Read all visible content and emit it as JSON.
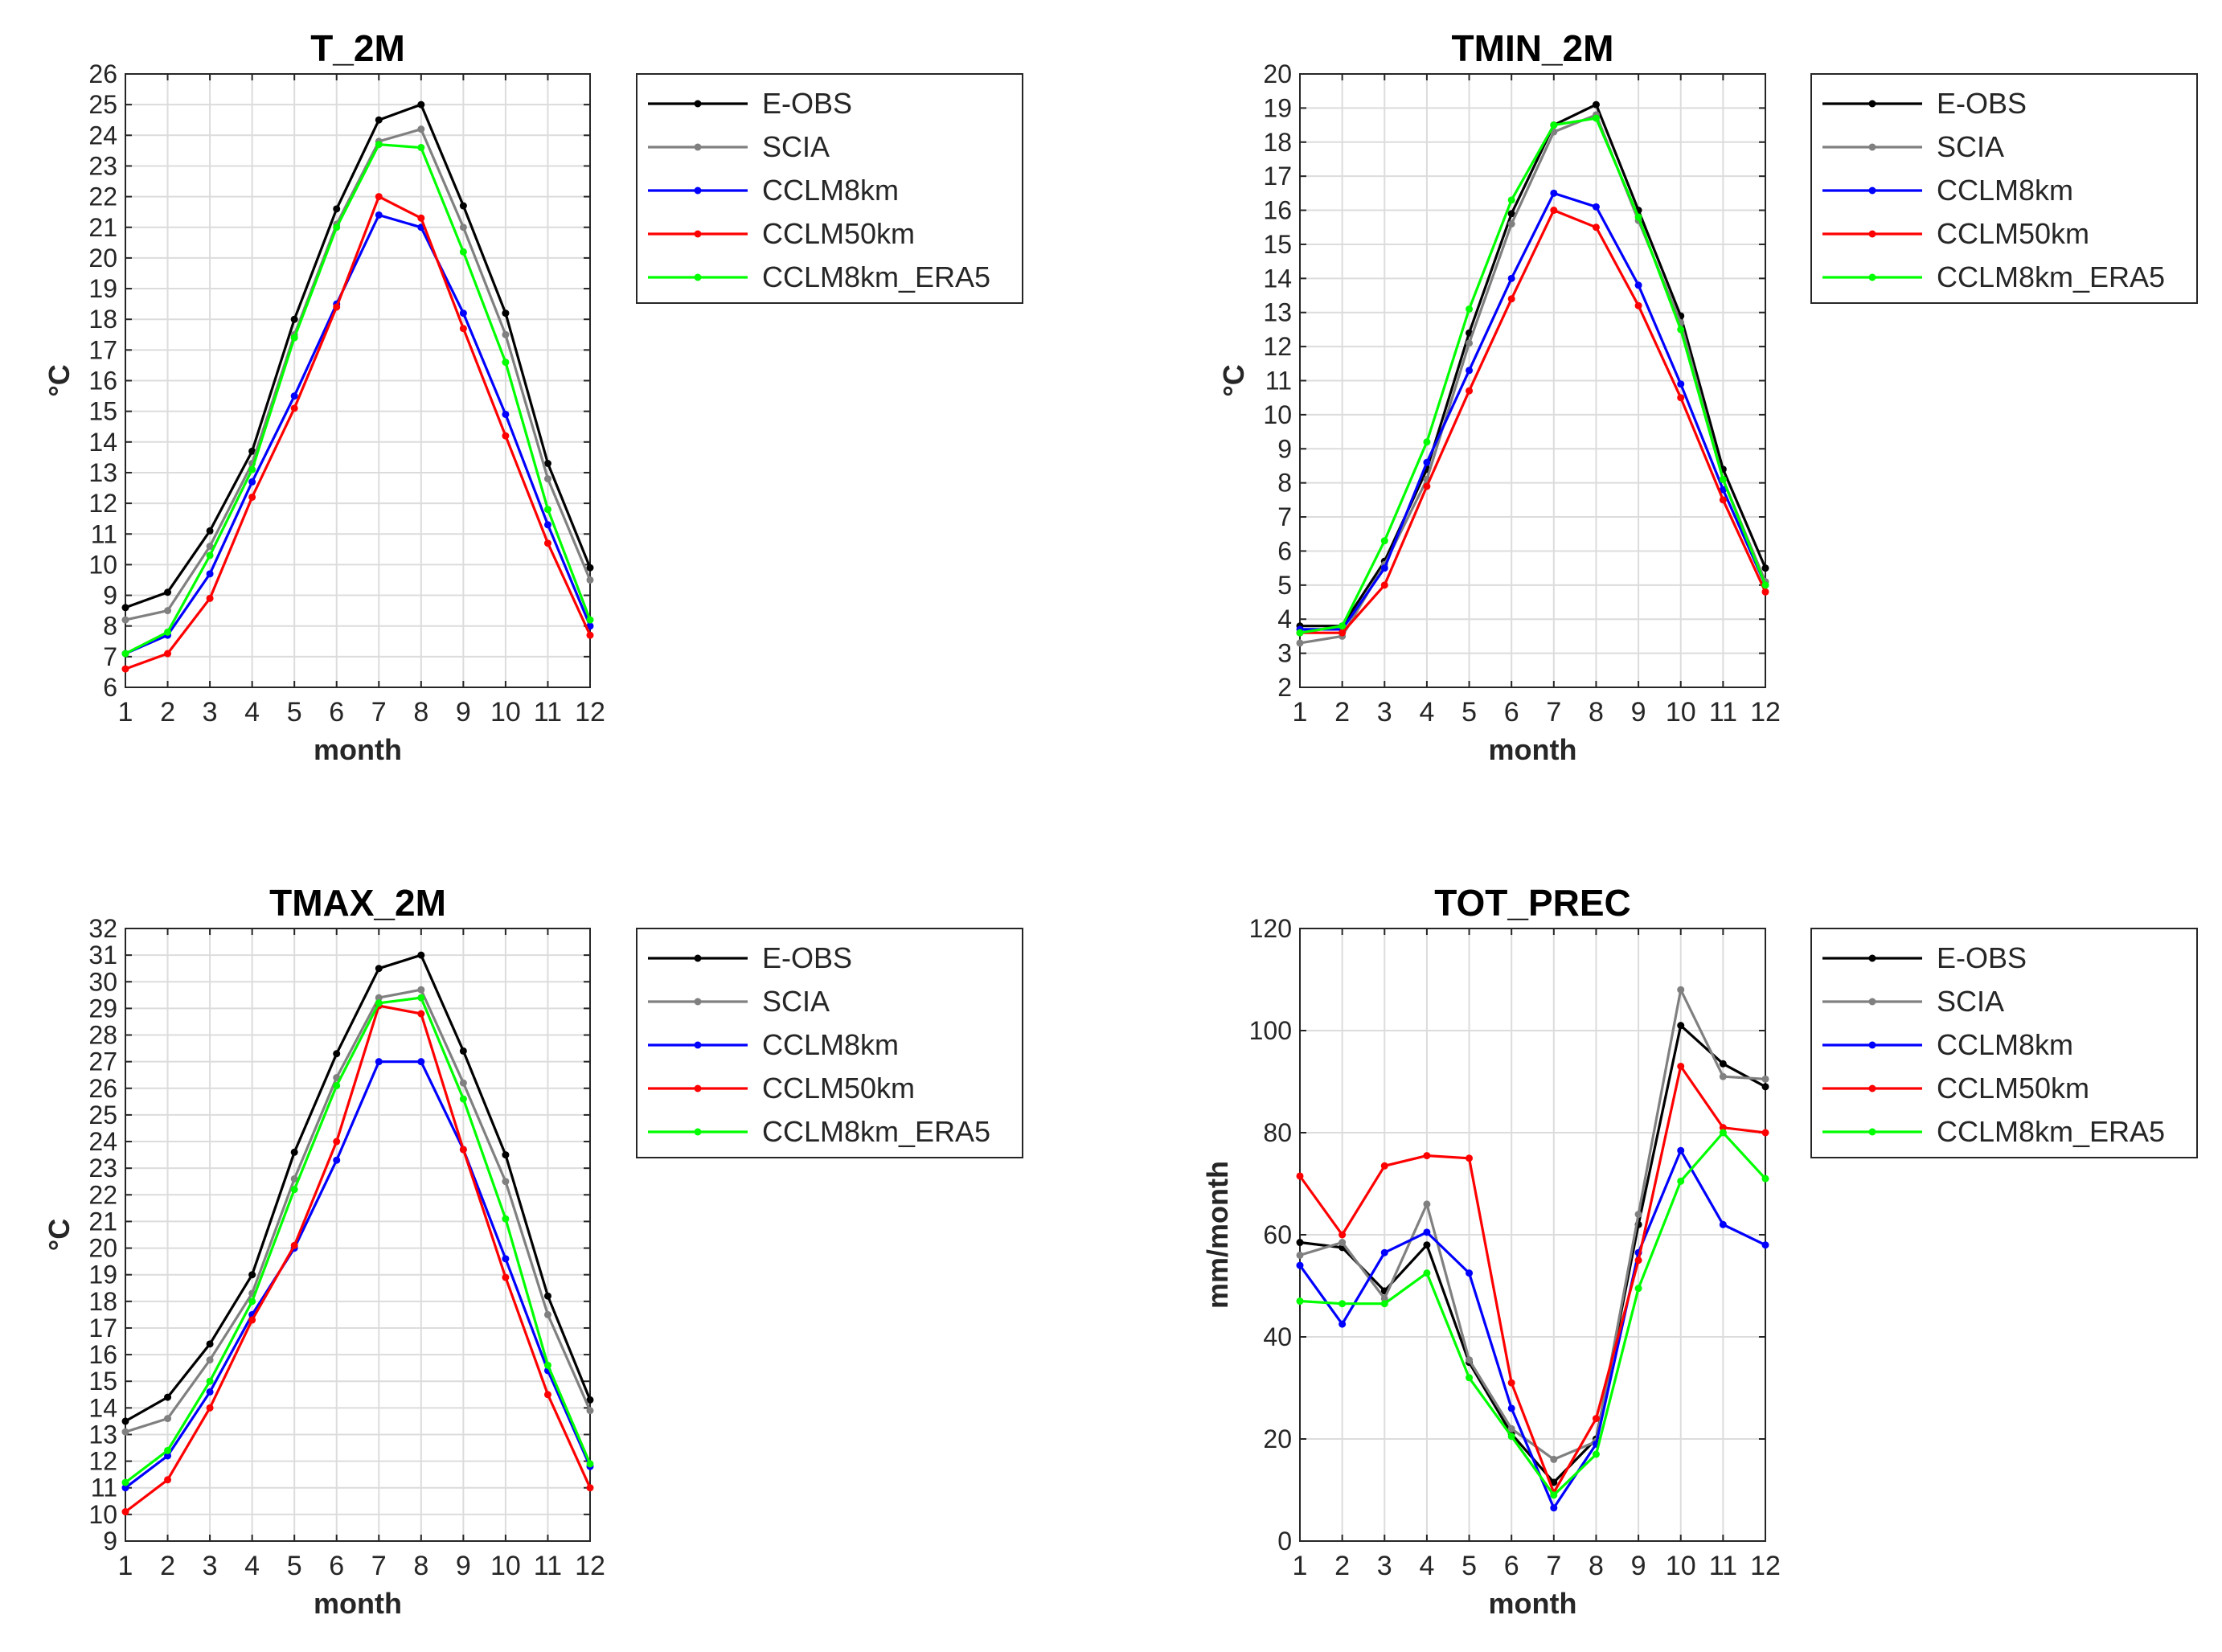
{
  "figure": {
    "name": "climatology-comparison"
  },
  "series_styles": [
    {
      "name": "E-OBS",
      "color": "#000000"
    },
    {
      "name": "SCIA",
      "color": "#808080"
    },
    {
      "name": "CCLM8km",
      "color": "#0000ff"
    },
    {
      "name": "CCLM50km",
      "color": "#ff0000"
    },
    {
      "name": "CCLM8km_ERA5",
      "color": "#00ff00"
    }
  ],
  "chart_data": [
    {
      "id": "t2m",
      "type": "line",
      "title": "T_2M",
      "xlabel": "month",
      "ylabel": "°C",
      "xlim": [
        1,
        12
      ],
      "ylim": [
        6,
        26
      ],
      "yticks": [
        6,
        7,
        8,
        9,
        10,
        11,
        12,
        13,
        14,
        15,
        16,
        17,
        18,
        19,
        20,
        21,
        22,
        23,
        24,
        25,
        26
      ],
      "x": [
        1,
        2,
        3,
        4,
        5,
        6,
        7,
        8,
        9,
        10,
        11,
        12
      ],
      "grid": true,
      "legend": "right",
      "series": [
        {
          "name": "E-OBS",
          "values": [
            8.6,
            9.1,
            11.1,
            13.7,
            18.0,
            21.6,
            24.5,
            25.0,
            21.7,
            18.2,
            13.3,
            9.9
          ]
        },
        {
          "name": "SCIA",
          "values": [
            8.2,
            8.5,
            10.6,
            13.3,
            17.5,
            21.1,
            23.8,
            24.2,
            21.0,
            17.5,
            12.8,
            9.5
          ]
        },
        {
          "name": "CCLM8km",
          "values": [
            7.1,
            7.7,
            9.7,
            12.7,
            15.5,
            18.5,
            21.4,
            21.0,
            18.2,
            14.9,
            11.3,
            8.0
          ]
        },
        {
          "name": "CCLM50km",
          "values": [
            6.6,
            7.1,
            8.9,
            12.2,
            15.1,
            18.4,
            22.0,
            21.3,
            17.7,
            14.2,
            10.7,
            7.7
          ]
        },
        {
          "name": "CCLM8km_ERA5",
          "values": [
            7.1,
            7.8,
            10.3,
            13.1,
            17.4,
            21.0,
            23.7,
            23.6,
            20.2,
            16.6,
            11.8,
            8.2
          ]
        }
      ]
    },
    {
      "id": "tmin2m",
      "type": "line",
      "title": "TMIN_2M",
      "xlabel": "month",
      "ylabel": "°C",
      "xlim": [
        1,
        12
      ],
      "ylim": [
        2,
        20
      ],
      "yticks": [
        2,
        3,
        4,
        5,
        6,
        7,
        8,
        9,
        10,
        11,
        12,
        13,
        14,
        15,
        16,
        17,
        18,
        19,
        20
      ],
      "x": [
        1,
        2,
        3,
        4,
        5,
        6,
        7,
        8,
        9,
        10,
        11,
        12
      ],
      "grid": true,
      "legend": "right",
      "series": [
        {
          "name": "E-OBS",
          "values": [
            3.8,
            3.8,
            5.7,
            8.4,
            12.4,
            15.9,
            18.5,
            19.1,
            16.0,
            12.9,
            8.4,
            5.5
          ]
        },
        {
          "name": "SCIA",
          "values": [
            3.3,
            3.5,
            5.6,
            8.1,
            12.1,
            15.6,
            18.3,
            18.8,
            15.7,
            12.7,
            8.1,
            5.1
          ]
        },
        {
          "name": "CCLM8km",
          "values": [
            3.7,
            3.7,
            5.5,
            8.6,
            11.3,
            14.0,
            16.5,
            16.1,
            13.8,
            10.9,
            7.8,
            5.0
          ]
        },
        {
          "name": "CCLM50km",
          "values": [
            3.6,
            3.6,
            5.0,
            7.9,
            10.7,
            13.4,
            16.0,
            15.5,
            13.2,
            10.5,
            7.5,
            4.8
          ]
        },
        {
          "name": "CCLM8km_ERA5",
          "values": [
            3.6,
            3.8,
            6.3,
            9.2,
            13.1,
            16.3,
            18.5,
            18.7,
            15.8,
            12.5,
            8.1,
            5.0
          ]
        }
      ]
    },
    {
      "id": "tmax2m",
      "type": "line",
      "title": "TMAX_2M",
      "xlabel": "month",
      "ylabel": "°C",
      "xlim": [
        1,
        12
      ],
      "ylim": [
        9,
        32
      ],
      "yticks": [
        9,
        10,
        11,
        12,
        13,
        14,
        15,
        16,
        17,
        18,
        19,
        20,
        21,
        22,
        23,
        24,
        25,
        26,
        27,
        28,
        29,
        30,
        31,
        32
      ],
      "x": [
        1,
        2,
        3,
        4,
        5,
        6,
        7,
        8,
        9,
        10,
        11,
        12
      ],
      "grid": true,
      "legend": "right",
      "series": [
        {
          "name": "E-OBS",
          "values": [
            13.5,
            14.4,
            16.4,
            19.0,
            23.6,
            27.3,
            30.5,
            31.0,
            27.4,
            23.5,
            18.2,
            14.3
          ]
        },
        {
          "name": "SCIA",
          "values": [
            13.1,
            13.6,
            15.8,
            18.3,
            22.6,
            26.4,
            29.4,
            29.7,
            26.2,
            22.5,
            17.5,
            13.9
          ]
        },
        {
          "name": "CCLM8km",
          "values": [
            11.0,
            12.2,
            14.6,
            17.5,
            20.0,
            23.3,
            27.0,
            27.0,
            23.7,
            19.6,
            15.4,
            11.8
          ]
        },
        {
          "name": "CCLM50km",
          "values": [
            10.1,
            11.3,
            14.0,
            17.3,
            20.1,
            24.0,
            29.1,
            28.8,
            23.7,
            18.9,
            14.5,
            11.0
          ]
        },
        {
          "name": "CCLM8km_ERA5",
          "values": [
            11.2,
            12.4,
            15.0,
            18.0,
            22.2,
            26.1,
            29.2,
            29.4,
            25.6,
            21.1,
            15.6,
            11.9
          ]
        }
      ]
    },
    {
      "id": "totprec",
      "type": "line",
      "title": "TOT_PREC",
      "xlabel": "month",
      "ylabel": "mm/month",
      "xlim": [
        1,
        12
      ],
      "ylim": [
        0,
        120
      ],
      "yticks": [
        0,
        20,
        40,
        60,
        80,
        100,
        120
      ],
      "x": [
        1,
        2,
        3,
        4,
        5,
        6,
        7,
        8,
        9,
        10,
        11,
        12
      ],
      "grid": true,
      "legend": "right",
      "series": [
        {
          "name": "E-OBS",
          "values": [
            58.5,
            57.5,
            49.0,
            58.0,
            35.0,
            21.0,
            11.5,
            20.0,
            62.0,
            101.0,
            93.5,
            89.0
          ]
        },
        {
          "name": "SCIA",
          "values": [
            56.0,
            58.5,
            47.5,
            66.0,
            35.5,
            22.0,
            16.0,
            19.5,
            64.0,
            108.0,
            91.0,
            90.5
          ]
        },
        {
          "name": "CCLM8km",
          "values": [
            54.0,
            42.5,
            56.5,
            60.5,
            52.5,
            26.0,
            6.5,
            19.0,
            56.5,
            76.5,
            62.0,
            58.0
          ]
        },
        {
          "name": "CCLM50km",
          "values": [
            71.5,
            60.0,
            73.5,
            75.5,
            75.0,
            31.0,
            9.5,
            24.0,
            55.0,
            93.0,
            81.0,
            80.0
          ]
        },
        {
          "name": "CCLM8km_ERA5",
          "values": [
            47.0,
            46.5,
            46.5,
            52.5,
            32.0,
            20.5,
            9.0,
            17.0,
            49.5,
            70.5,
            80.0,
            71.0
          ]
        }
      ]
    }
  ]
}
